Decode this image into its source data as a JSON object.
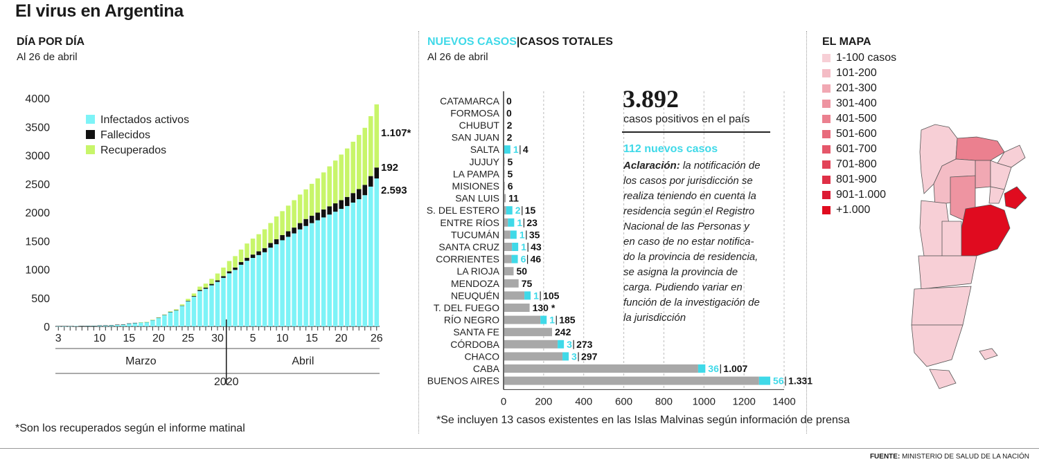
{
  "title": "El virus en Argentina",
  "left_panel": {
    "heading": "DÍA POR DÍA",
    "subheading": "Al 26 de abril",
    "footnote": "*Son los recuperados según el informe matinal",
    "month_labels": [
      "Marzo",
      "Abril"
    ],
    "year_label": "2020",
    "end_labels": {
      "recovered": "1.107*",
      "deaths": "192",
      "active": "2.593"
    }
  },
  "middle_panel": {
    "heading_new": "NUEVOS CASOS",
    "heading_sep": "|",
    "heading_total": "CASOS TOTALES",
    "subheading": "Al 26 de abril",
    "total_big": "3.892",
    "total_caption": "casos positivos en el país",
    "new_cases": "112 nuevos casos",
    "clarification_label": "Aclaración:",
    "clarification_lines": [
      " la notificación de",
      "los casos por jurisdicción se",
      "realiza teniendo en cuenta la",
      "residencia según el Registro",
      "Nacional de las Personas y",
      "en caso de no estar notifica-",
      "do la provincia de residencia,",
      "se asigna la provincia de",
      "carga. Pudiendo variar en",
      "función de la investigación de",
      "la jurisdicción"
    ],
    "footnote": "*Se incluyen 13 casos existentes en las Islas Malvinas según información de prensa"
  },
  "map_panel": {
    "heading": "EL MAPA",
    "legend": [
      {
        "label": "1-100 casos",
        "color": "#f7cfd6"
      },
      {
        "label": "101-200",
        "color": "#f4bcc5"
      },
      {
        "label": "201-300",
        "color": "#f1a8b3"
      },
      {
        "label": "301-400",
        "color": "#ee94a1"
      },
      {
        "label": "401-500",
        "color": "#eb808f"
      },
      {
        "label": "501-600",
        "color": "#e86b7c"
      },
      {
        "label": "601-700",
        "color": "#e5576a"
      },
      {
        "label": "701-800",
        "color": "#e24358"
      },
      {
        "label": "801-900",
        "color": "#df2f46"
      },
      {
        "label": "901-1.000",
        "color": "#dc1b34"
      },
      {
        "label": "+1.000",
        "color": "#e00b1f"
      }
    ]
  },
  "source": {
    "label": "FUENTE:",
    "text": "MINISTERIO DE SALUD DE LA NACIÓN"
  },
  "colors": {
    "active": "#7df3f7",
    "deaths": "#111111",
    "recovered": "#c8f56a",
    "gray_bar": "#a8a8a8",
    "new_bar": "#3fd9e8"
  },
  "chart_data": [
    {
      "type": "bar",
      "stacked": true,
      "ylim": [
        0,
        4000
      ],
      "yticks": [
        0,
        500,
        1000,
        1500,
        2000,
        2500,
        3000,
        3500,
        4000
      ],
      "xtick_labels": [
        "3",
        "10",
        "15",
        "20",
        "25",
        "30",
        "5",
        "10",
        "15",
        "20",
        "26"
      ],
      "legend_position": "top-left",
      "x": [
        "3/3",
        "4/3",
        "5/3",
        "6/3",
        "7/3",
        "8/3",
        "9/3",
        "10/3",
        "11/3",
        "12/3",
        "13/3",
        "14/3",
        "15/3",
        "16/3",
        "17/3",
        "18/3",
        "19/3",
        "20/3",
        "21/3",
        "22/3",
        "23/3",
        "24/3",
        "25/3",
        "26/3",
        "27/3",
        "28/3",
        "29/3",
        "30/3",
        "31/3",
        "1/4",
        "2/4",
        "3/4",
        "4/4",
        "5/4",
        "6/4",
        "7/4",
        "8/4",
        "9/4",
        "10/4",
        "11/4",
        "12/4",
        "13/4",
        "14/4",
        "15/4",
        "16/4",
        "17/4",
        "18/4",
        "19/4",
        "20/4",
        "21/4",
        "22/4",
        "23/4",
        "24/4",
        "25/4",
        "26/4"
      ],
      "series": [
        {
          "name": "Infectados activos",
          "values": [
            1,
            1,
            2,
            6,
            7,
            10,
            10,
            15,
            17,
            20,
            28,
            32,
            50,
            60,
            70,
            75,
            110,
            150,
            200,
            250,
            280,
            360,
            440,
            520,
            620,
            660,
            720,
            780,
            850,
            930,
            990,
            1080,
            1150,
            1200,
            1250,
            1300,
            1380,
            1440,
            1510,
            1570,
            1630,
            1700,
            1760,
            1810,
            1860,
            1910,
            1960,
            2010,
            2060,
            2110,
            2170,
            2230,
            2300,
            2450,
            2593
          ]
        },
        {
          "name": "Fallecidos",
          "values": [
            0,
            0,
            0,
            0,
            1,
            1,
            2,
            2,
            2,
            2,
            2,
            2,
            2,
            2,
            2,
            2,
            3,
            3,
            3,
            4,
            4,
            6,
            8,
            12,
            17,
            20,
            24,
            27,
            31,
            36,
            42,
            47,
            53,
            59,
            66,
            72,
            82,
            87,
            90,
            97,
            102,
            111,
            122,
            129,
            134,
            139,
            145,
            147,
            152,
            159,
            167,
            176,
            181,
            185,
            192
          ]
        },
        {
          "name": "Recuperados",
          "values": [
            0,
            0,
            0,
            0,
            0,
            0,
            0,
            0,
            0,
            0,
            0,
            0,
            0,
            0,
            1,
            2,
            3,
            4,
            5,
            10,
            15,
            20,
            35,
            45,
            60,
            70,
            90,
            120,
            150,
            180,
            200,
            220,
            250,
            280,
            300,
            330,
            350,
            400,
            420,
            450,
            480,
            500,
            520,
            560,
            600,
            650,
            700,
            750,
            800,
            850,
            900,
            950,
            1000,
            1050,
            1107
          ]
        }
      ]
    },
    {
      "type": "bar",
      "orientation": "horizontal",
      "xlim": [
        0,
        1400
      ],
      "xticks": [
        0,
        200,
        400,
        600,
        800,
        1000,
        1200,
        1400
      ],
      "categories": [
        "CATAMARCA",
        "FORMOSA",
        "CHUBUT",
        "SAN JUAN",
        "SALTA",
        "JUJUY",
        "LA PAMPA",
        "MISIONES",
        "SAN LUIS",
        "S. DEL ESTERO",
        "ENTRE RÍOS",
        "TUCUMÁN",
        "SANTA CRUZ",
        "CORRIENTES",
        "LA RIOJA",
        "MENDOZA",
        "NEUQUÉN",
        "T. DEL FUEGO",
        "RÍO NEGRO",
        "SANTA FE",
        "CÓRDOBA",
        "CHACO",
        "CABA",
        "BUENOS AIRES"
      ],
      "new_cases": [
        0,
        0,
        0,
        0,
        1,
        0,
        0,
        0,
        0,
        2,
        1,
        1,
        1,
        6,
        0,
        0,
        1,
        0,
        1,
        0,
        3,
        3,
        36,
        56
      ],
      "total_cases": [
        0,
        0,
        2,
        2,
        4,
        5,
        5,
        6,
        11,
        15,
        23,
        35,
        43,
        46,
        50,
        75,
        105,
        130,
        185,
        242,
        273,
        297,
        1007,
        1331
      ],
      "total_labels": [
        "0",
        "0",
        "2",
        "2",
        "4",
        "5",
        "5",
        "6",
        "11",
        "15",
        "23",
        "35",
        "43",
        "46",
        "50",
        "75",
        "105",
        "130 *",
        "185",
        "242",
        "273",
        "297",
        "1.007",
        "1.331"
      ]
    }
  ]
}
